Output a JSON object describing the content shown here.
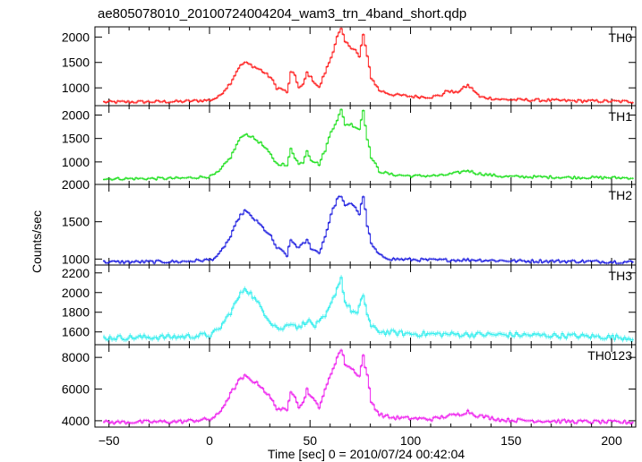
{
  "chart_data": {
    "type": "line",
    "title": "ae805078010_20100724004204_wam3_trn_4band_short.qdp",
    "xlabel": "Time [sec] 0 = 2010/07/24 00:42:04",
    "ylabel": "Counts/sec",
    "xlim": [
      -57,
      212
    ],
    "x_ticks": [
      -50,
      0,
      50,
      100,
      150,
      200
    ],
    "grid": false,
    "panels": [
      {
        "name": "TH0",
        "color": "#ff2020",
        "ylim": [
          650,
          2200
        ],
        "y_ticks": [
          1000,
          1500,
          2000
        ],
        "baseline": 720,
        "points": [
          [
            -52,
            720
          ],
          [
            -15,
            730
          ],
          [
            0,
            760
          ],
          [
            4,
            820
          ],
          [
            10,
            1100
          ],
          [
            14,
            1400
          ],
          [
            17,
            1500
          ],
          [
            20,
            1450
          ],
          [
            25,
            1350
          ],
          [
            30,
            1200
          ],
          [
            33,
            1000
          ],
          [
            36,
            970
          ],
          [
            38,
            900
          ],
          [
            40,
            1300
          ],
          [
            42,
            1250
          ],
          [
            44,
            1000
          ],
          [
            46,
            1050
          ],
          [
            48,
            1300
          ],
          [
            50,
            1200
          ],
          [
            54,
            1000
          ],
          [
            57,
            1300
          ],
          [
            60,
            1600
          ],
          [
            63,
            2000
          ],
          [
            65,
            2150
          ],
          [
            67,
            1900
          ],
          [
            70,
            1800
          ],
          [
            72,
            1750
          ],
          [
            74,
            1600
          ],
          [
            76,
            2050
          ],
          [
            78,
            1600
          ],
          [
            80,
            1200
          ],
          [
            84,
            950
          ],
          [
            90,
            870
          ],
          [
            100,
            830
          ],
          [
            110,
            820
          ],
          [
            115,
            860
          ],
          [
            118,
            950
          ],
          [
            122,
            900
          ],
          [
            126,
            1000
          ],
          [
            128,
            1050
          ],
          [
            131,
            950
          ],
          [
            134,
            820
          ],
          [
            145,
            770
          ],
          [
            160,
            760
          ],
          [
            180,
            745
          ],
          [
            210,
            730
          ]
        ],
        "noise": 28
      },
      {
        "name": "TH1",
        "color": "#22e022",
        "ylim": [
          520,
          2200
        ],
        "y_ticks": [
          1000,
          1500,
          2000
        ],
        "baseline": 640,
        "points": [
          [
            -52,
            640
          ],
          [
            -15,
            650
          ],
          [
            0,
            690
          ],
          [
            4,
            780
          ],
          [
            10,
            1100
          ],
          [
            14,
            1450
          ],
          [
            17,
            1600
          ],
          [
            20,
            1550
          ],
          [
            25,
            1400
          ],
          [
            30,
            1150
          ],
          [
            33,
            960
          ],
          [
            36,
            950
          ],
          [
            38,
            900
          ],
          [
            40,
            1300
          ],
          [
            42,
            1100
          ],
          [
            44,
            950
          ],
          [
            46,
            1000
          ],
          [
            48,
            1250
          ],
          [
            50,
            1050
          ],
          [
            54,
            950
          ],
          [
            57,
            1250
          ],
          [
            60,
            1650
          ],
          [
            63,
            1900
          ],
          [
            65,
            2100
          ],
          [
            67,
            1800
          ],
          [
            70,
            1800
          ],
          [
            72,
            1750
          ],
          [
            74,
            1700
          ],
          [
            76,
            2100
          ],
          [
            78,
            1500
          ],
          [
            80,
            1100
          ],
          [
            84,
            800
          ],
          [
            90,
            730
          ],
          [
            100,
            700
          ],
          [
            115,
            710
          ],
          [
            122,
            760
          ],
          [
            128,
            820
          ],
          [
            132,
            760
          ],
          [
            145,
            690
          ],
          [
            180,
            670
          ],
          [
            210,
            660
          ]
        ],
        "noise": 28
      },
      {
        "name": "TH2",
        "color": "#2020e0",
        "ylim": [
          920,
          2000
        ],
        "y_ticks": [
          1000,
          1500,
          2000
        ],
        "baseline": 960,
        "points": [
          [
            -52,
            960
          ],
          [
            -15,
            965
          ],
          [
            0,
            990
          ],
          [
            4,
            1050
          ],
          [
            10,
            1300
          ],
          [
            14,
            1550
          ],
          [
            17,
            1650
          ],
          [
            20,
            1580
          ],
          [
            25,
            1450
          ],
          [
            30,
            1300
          ],
          [
            33,
            1150
          ],
          [
            36,
            1100
          ],
          [
            38,
            1050
          ],
          [
            40,
            1250
          ],
          [
            42,
            1200
          ],
          [
            44,
            1150
          ],
          [
            46,
            1200
          ],
          [
            48,
            1250
          ],
          [
            50,
            1150
          ],
          [
            54,
            1080
          ],
          [
            57,
            1300
          ],
          [
            60,
            1600
          ],
          [
            63,
            1800
          ],
          [
            65,
            1850
          ],
          [
            67,
            1700
          ],
          [
            70,
            1750
          ],
          [
            72,
            1700
          ],
          [
            74,
            1600
          ],
          [
            76,
            1850
          ],
          [
            78,
            1450
          ],
          [
            80,
            1200
          ],
          [
            84,
            1050
          ],
          [
            90,
            1000
          ],
          [
            110,
            985
          ],
          [
            130,
            990
          ],
          [
            150,
            975
          ],
          [
            180,
            970
          ],
          [
            210,
            960
          ]
        ],
        "noise": 20
      },
      {
        "name": "TH3",
        "color": "#33eeee",
        "ylim": [
          1470,
          2280
        ],
        "y_ticks": [
          1600,
          1800,
          2000,
          2200
        ],
        "baseline": 1540,
        "points": [
          [
            -52,
            1540
          ],
          [
            -15,
            1550
          ],
          [
            0,
            1570
          ],
          [
            4,
            1620
          ],
          [
            10,
            1800
          ],
          [
            14,
            1950
          ],
          [
            17,
            2050
          ],
          [
            20,
            1990
          ],
          [
            25,
            1850
          ],
          [
            30,
            1700
          ],
          [
            35,
            1620
          ],
          [
            40,
            1700
          ],
          [
            44,
            1640
          ],
          [
            48,
            1720
          ],
          [
            52,
            1660
          ],
          [
            57,
            1750
          ],
          [
            60,
            1880
          ],
          [
            63,
            2050
          ],
          [
            65,
            2150
          ],
          [
            67,
            1900
          ],
          [
            70,
            1820
          ],
          [
            73,
            1780
          ],
          [
            76,
            1980
          ],
          [
            78,
            1780
          ],
          [
            80,
            1650
          ],
          [
            85,
            1600
          ],
          [
            100,
            1580
          ],
          [
            150,
            1570
          ],
          [
            180,
            1560
          ],
          [
            210,
            1540
          ]
        ],
        "noise": 26
      },
      {
        "name": "TH0123",
        "color": "#ee22ee",
        "ylim": [
          3600,
          8800
        ],
        "y_ticks": [
          4000,
          6000,
          8000
        ],
        "baseline": 3900,
        "points": [
          [
            -52,
            3900
          ],
          [
            -15,
            3950
          ],
          [
            0,
            4100
          ],
          [
            4,
            4400
          ],
          [
            10,
            5700
          ],
          [
            14,
            6500
          ],
          [
            17,
            6800
          ],
          [
            20,
            6600
          ],
          [
            25,
            6200
          ],
          [
            30,
            5400
          ],
          [
            33,
            4800
          ],
          [
            36,
            4700
          ],
          [
            38,
            4600
          ],
          [
            40,
            5900
          ],
          [
            42,
            5600
          ],
          [
            44,
            4900
          ],
          [
            46,
            5100
          ],
          [
            48,
            6000
          ],
          [
            50,
            5500
          ],
          [
            54,
            4900
          ],
          [
            57,
            5900
          ],
          [
            60,
            7000
          ],
          [
            63,
            8000
          ],
          [
            65,
            8500
          ],
          [
            67,
            7600
          ],
          [
            70,
            7300
          ],
          [
            72,
            7100
          ],
          [
            74,
            6800
          ],
          [
            76,
            8100
          ],
          [
            78,
            6800
          ],
          [
            80,
            5200
          ],
          [
            84,
            4400
          ],
          [
            90,
            4200
          ],
          [
            110,
            4100
          ],
          [
            118,
            4300
          ],
          [
            124,
            4400
          ],
          [
            128,
            4600
          ],
          [
            132,
            4350
          ],
          [
            145,
            4050
          ],
          [
            180,
            3950
          ],
          [
            210,
            3900
          ]
        ],
        "noise": 110
      }
    ]
  }
}
